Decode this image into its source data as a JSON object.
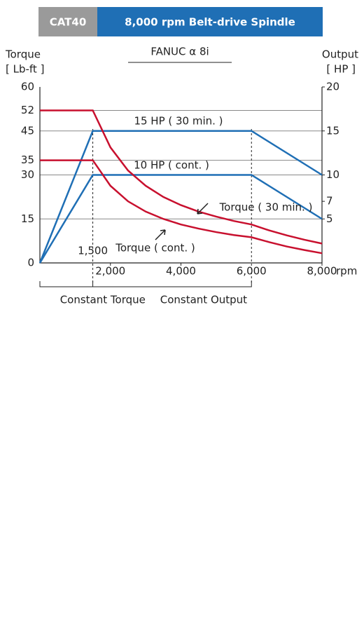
{
  "chart_data": {
    "type": "line",
    "badge": "CAT40",
    "title": "8,000 rpm Belt-drive Spindle",
    "subtitle": "FANUC α 8i",
    "y_label": [
      "Torque",
      "[ Lb-ft ]"
    ],
    "y2_label": [
      "Output",
      "[ HP ]"
    ],
    "x_label": "rpm",
    "xlim": [
      0,
      8000
    ],
    "ylim": [
      0,
      60
    ],
    "y2lim": [
      0,
      20
    ],
    "xticks": [
      {
        "value": 1500,
        "label": "1,500"
      },
      {
        "value": 2000,
        "label": "2,000"
      },
      {
        "value": 4000,
        "label": "4,000"
      },
      {
        "value": 6000,
        "label": "6,000"
      },
      {
        "value": 8000,
        "label": "8,000"
      }
    ],
    "yticks": [
      0,
      15,
      30,
      35,
      45,
      52,
      60
    ],
    "y2ticks": [
      5,
      7,
      10,
      15,
      20
    ],
    "grid": true,
    "regions": [
      "Constant Torque",
      "Constant Output"
    ],
    "series": [
      {
        "name": "15 HP ( 30 min. )",
        "color": "#1f6fb5",
        "axis": "y2",
        "x": [
          0,
          1500,
          6000,
          8000
        ],
        "values": [
          0,
          15,
          15,
          10
        ]
      },
      {
        "name": "10 HP ( cont. )",
        "color": "#1f6fb5",
        "axis": "y2",
        "x": [
          0,
          1500,
          6000,
          8000
        ],
        "values": [
          0,
          10,
          10,
          5
        ]
      },
      {
        "name": "Torque ( 30 min. )",
        "color": "#c8102e",
        "x": [
          0,
          1500,
          2000,
          2500,
          3000,
          3500,
          4000,
          4500,
          5000,
          5500,
          6000,
          6500,
          7000,
          7500,
          8000
        ],
        "values": [
          52,
          52,
          39.4,
          31.5,
          26.3,
          22.5,
          19.7,
          17.5,
          15.8,
          14.3,
          13.1,
          11.1,
          9.4,
          7.9,
          6.6
        ]
      },
      {
        "name": "Torque ( cont. )",
        "color": "#c8102e",
        "x": [
          0,
          1500,
          2000,
          2500,
          3000,
          3500,
          4000,
          4500,
          5000,
          5500,
          6000,
          6500,
          7000,
          7500,
          8000
        ],
        "values": [
          35,
          35,
          26.3,
          21,
          17.5,
          15,
          13.1,
          11.7,
          10.5,
          9.5,
          8.75,
          7.1,
          5.6,
          4.4,
          3.3
        ]
      }
    ]
  }
}
